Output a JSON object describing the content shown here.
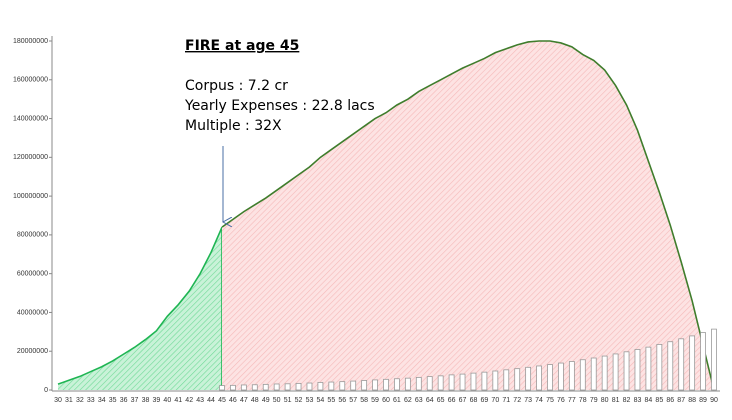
{
  "chart_data": {
    "type": "area",
    "annotation": {
      "heading": "FIRE at age 45",
      "lines": [
        "Corpus : 7.2 cr",
        "Yearly Expenses : 22.8 lacs",
        "Multiple : 32X"
      ]
    },
    "categories": [
      30,
      31,
      32,
      33,
      34,
      35,
      36,
      37,
      38,
      39,
      40,
      41,
      42,
      43,
      44,
      45,
      46,
      47,
      48,
      49,
      50,
      51,
      52,
      53,
      54,
      55,
      56,
      57,
      58,
      59,
      60,
      61,
      62,
      63,
      64,
      65,
      66,
      67,
      68,
      69,
      70,
      71,
      72,
      73,
      74,
      75,
      76,
      77,
      78,
      79,
      80,
      81,
      82,
      83,
      84,
      85,
      86,
      87,
      88,
      89,
      90
    ],
    "series": [
      {
        "type": "area",
        "color": "#1fb553",
        "fill": "#c9f2d8",
        "values": [
          3000000,
          5000000,
          7000000,
          9500000,
          12000000,
          15000000,
          18500000,
          22000000,
          26000000,
          30500000,
          38000000,
          44000000,
          51000000,
          60000000,
          71000000,
          84000000,
          null,
          null,
          null,
          null,
          null,
          null,
          null,
          null,
          null,
          null,
          null,
          null,
          null,
          null,
          null,
          null,
          null,
          null,
          null,
          null,
          null,
          null,
          null,
          null,
          null,
          null,
          null,
          null,
          null,
          null,
          null,
          null,
          null,
          null,
          null,
          null,
          null,
          null,
          null,
          null,
          null,
          null,
          null,
          null,
          null
        ]
      },
      {
        "type": "area",
        "color": "#3f7d2c",
        "fill": "#fde3e3",
        "values": [
          null,
          null,
          null,
          null,
          null,
          null,
          null,
          null,
          null,
          null,
          null,
          null,
          null,
          null,
          null,
          84000000,
          88000000,
          92000000,
          95500000,
          99000000,
          103000000,
          107000000,
          111000000,
          115000000,
          120000000,
          124000000,
          128000000,
          132000000,
          136000000,
          140000000,
          143000000,
          147000000,
          150000000,
          154000000,
          157000000,
          160000000,
          163000000,
          166000000,
          168500000,
          171000000,
          174000000,
          176000000,
          178000000,
          179500000,
          180000000,
          180000000,
          179000000,
          177000000,
          173000000,
          170000000,
          165000000,
          157000000,
          147000000,
          134000000,
          118000000,
          102000000,
          85000000,
          66000000,
          46000000,
          23000000,
          0
        ]
      },
      {
        "type": "bar",
        "color": "#9a9a9a",
        "values": [
          null,
          null,
          null,
          null,
          null,
          null,
          null,
          null,
          null,
          null,
          null,
          null,
          null,
          null,
          null,
          2300000,
          2400000,
          2600000,
          2700000,
          2900000,
          3100000,
          3200000,
          3400000,
          3600000,
          3900000,
          4100000,
          4300000,
          4600000,
          4900000,
          5200000,
          5500000,
          5800000,
          6100000,
          6500000,
          6900000,
          7300000,
          7800000,
          8200000,
          8700000,
          9200000,
          9800000,
          10400000,
          11000000,
          11700000,
          12400000,
          13100000,
          13900000,
          14700000,
          15600000,
          16500000,
          17500000,
          18600000,
          19700000,
          20900000,
          22100000,
          23500000,
          24900000,
          26400000,
          27900000,
          29600000,
          31400000
        ]
      }
    ],
    "ylim": [
      0,
      180000000
    ],
    "yticks": [
      0,
      20000000,
      40000000,
      60000000,
      80000000,
      100000000,
      120000000,
      140000000,
      160000000,
      180000000
    ]
  }
}
